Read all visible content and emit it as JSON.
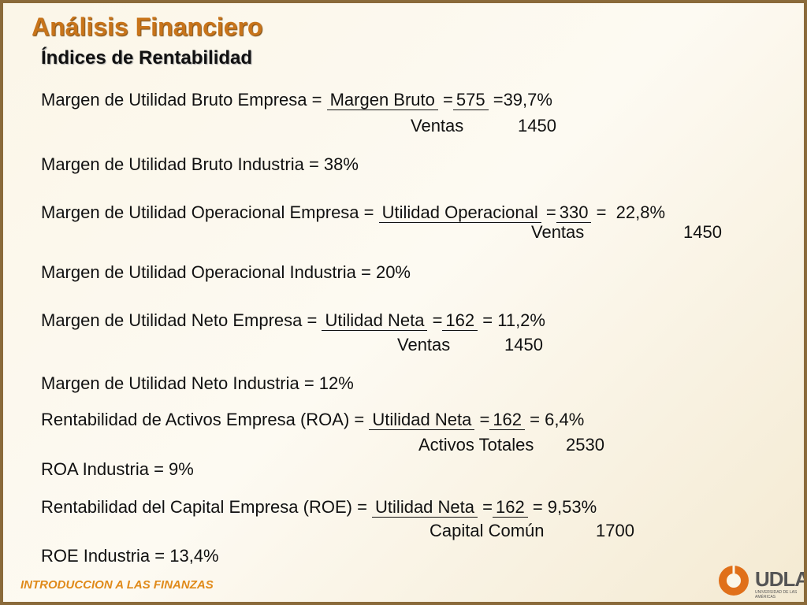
{
  "title": "Análisis Financiero",
  "subtitle": "Índices de Rentabilidad",
  "rows": [
    {
      "label": "Margen de Utilidad Bruto Empresa =",
      "numerator_name": "Margen Bruto",
      "eq": "=",
      "numerator": "575",
      "result": "=39,7%",
      "denominator_name": "Ventas",
      "denominator": "1450"
    },
    {
      "text": "Margen de Utilidad Bruto Industria = 38%"
    },
    {
      "label": "Margen de Utilidad Operacional Empresa =",
      "numerator_name": "Utilidad Operacional",
      "eq": "=",
      "numerator": "330",
      "result": "=  22,8%",
      "denominator_name": "Ventas",
      "denominator": "1450"
    },
    {
      "text": "Margen de Utilidad Operacional Industria = 20%"
    },
    {
      "label": "Margen de Utilidad Neto Empresa =",
      "numerator_name": "Utilidad Neta",
      "eq": "=",
      "numerator": "162",
      "result": "= 11,2%",
      "denominator_name": "Ventas",
      "denominator": "1450"
    },
    {
      "text": "Margen de Utilidad Neto Industria = 12%"
    },
    {
      "label": "Rentabilidad de Activos Empresa (ROA) =",
      "numerator_name": "Utilidad Neta",
      "eq": "=",
      "numerator": "162",
      "result": "= 6,4%",
      "denominator_name": "Activos Totales",
      "denominator": "2530"
    },
    {
      "text": "ROA Industria = 9%"
    },
    {
      "label": "Rentabilidad del Capital Empresa (ROE) =",
      "numerator_name": "Utilidad Neta",
      "eq": "=",
      "numerator": "162",
      "result": "= 9,53%",
      "denominator_name": "Capital Común",
      "denominator": "1700"
    },
    {
      "text": "ROE Industria = 13,4%"
    }
  ],
  "footer": "INTRODUCCION A LAS FINANZAS",
  "logo": "UDLA",
  "logo_sub": "UNIVERSIDAD DE LAS AMÉRICAS"
}
